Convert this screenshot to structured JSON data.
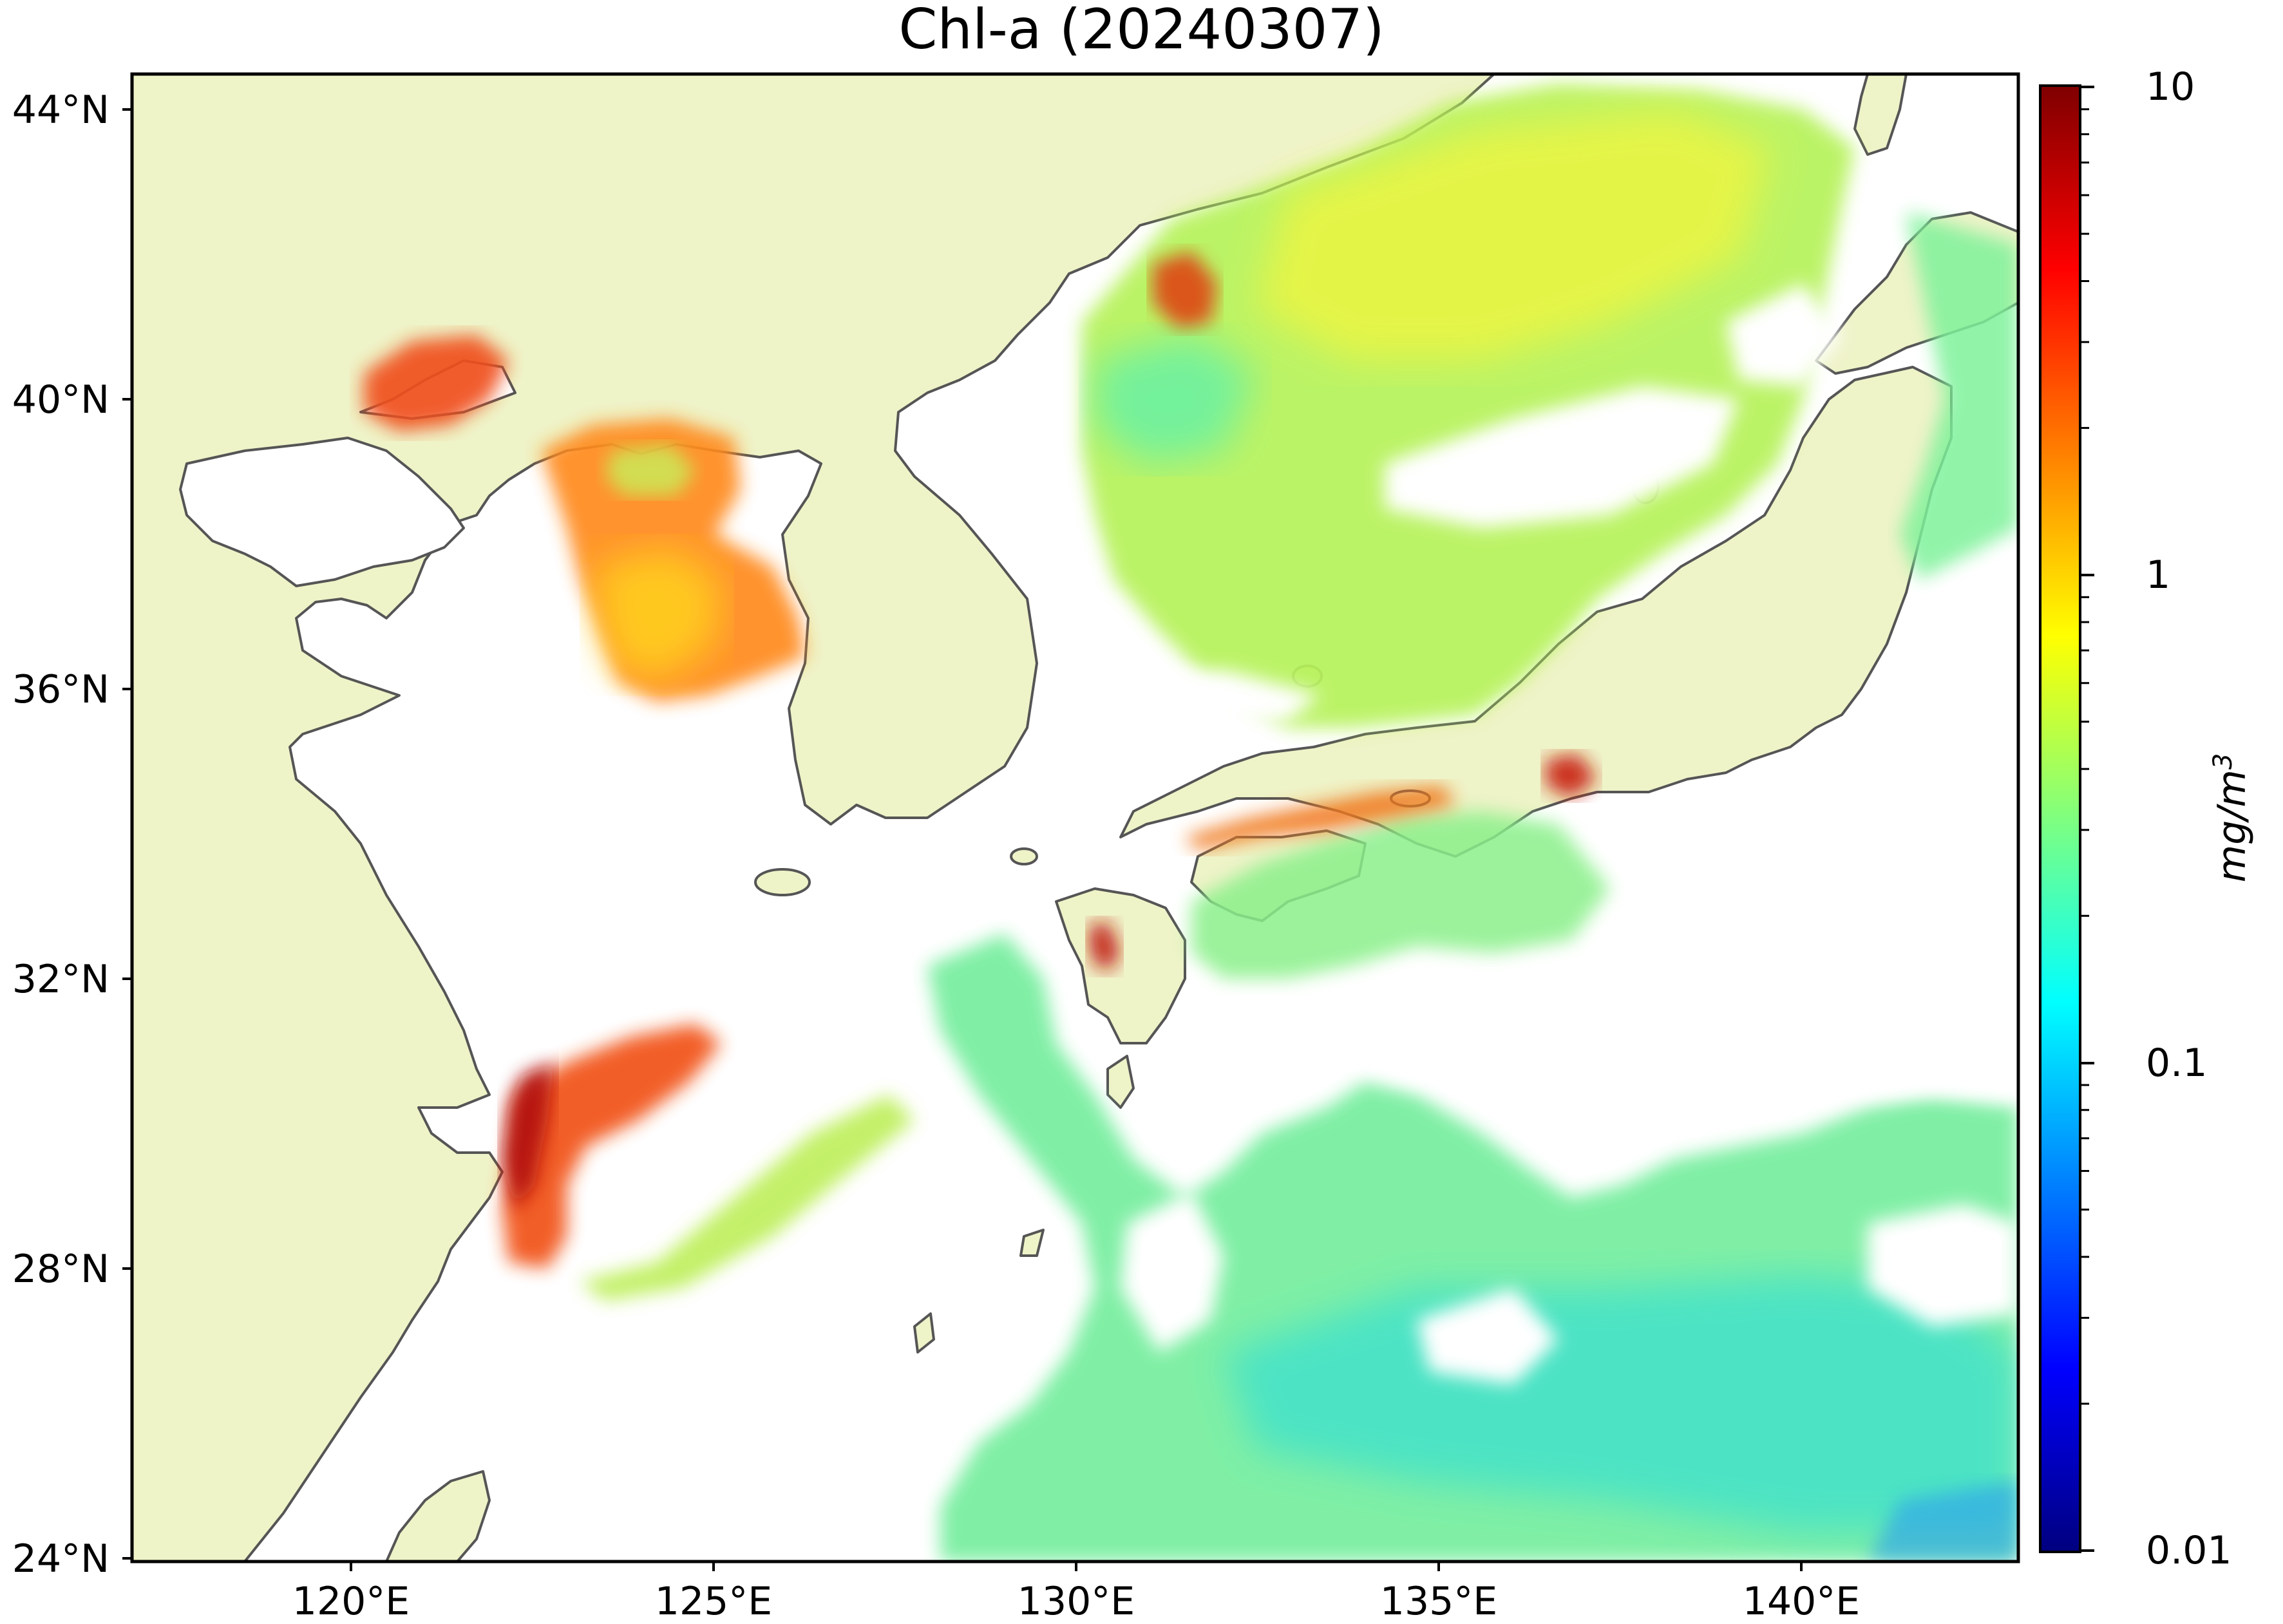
{
  "title": "Chl-a (20240307)",
  "map": {
    "region": "Northwest Pacific / East China Sea / Sea of Japan",
    "lat_ticks": [
      "44°N",
      "40°N",
      "36°N",
      "32°N",
      "28°N",
      "24°N"
    ],
    "lon_ticks": [
      "120°E",
      "125°E",
      "130°E",
      "135°E",
      "140°E"
    ],
    "land_color": "#eff3c8",
    "coast_color": "#555555",
    "no_data_color": "#ffffff"
  },
  "colorbar": {
    "scale": "log",
    "min": 0.01,
    "max": 10,
    "tick_labels": [
      "10",
      "1",
      "0.1",
      "0.01"
    ],
    "unit_main": "mg/m",
    "unit_sup": "3",
    "colormap": "jet",
    "colors": [
      "#00007f",
      "#0000ff",
      "#007fff",
      "#00ffff",
      "#7fff7f",
      "#ffff00",
      "#ff7f00",
      "#ff0000",
      "#7f0000"
    ]
  }
}
